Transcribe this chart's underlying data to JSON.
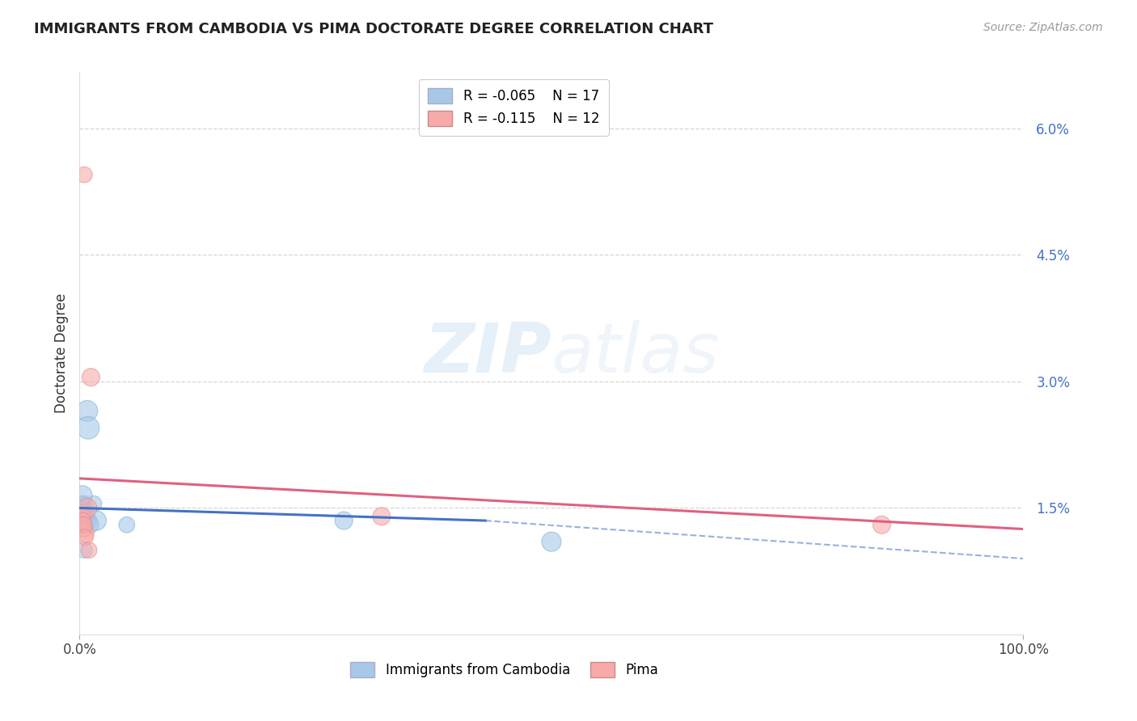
{
  "title": "IMMIGRANTS FROM CAMBODIA VS PIMA DOCTORATE DEGREE CORRELATION CHART",
  "source": "Source: ZipAtlas.com",
  "ylabel": "Doctorate Degree",
  "xlabel_legend1": "Immigrants from Cambodia",
  "xlabel_legend2": "Pima",
  "legend_blue_r": "R = -0.065",
  "legend_blue_n": "N = 17",
  "legend_pink_r": "R = -0.115",
  "legend_pink_n": "N = 12",
  "xmin": 0,
  "xmax": 100,
  "ymin": 0,
  "ymax": 6.667,
  "yticks": [
    1.5,
    3.0,
    4.5,
    6.0
  ],
  "ytick_labels": [
    "1.5%",
    "3.0%",
    "4.5%",
    "6.0%"
  ],
  "xticks": [
    0,
    100
  ],
  "xtick_labels": [
    "0.0%",
    "100.0%"
  ],
  "background_color": "#ffffff",
  "grid_color": "#cccccc",
  "blue_color": "#a8c8e8",
  "blue_edge_color": "#7aafd4",
  "pink_color": "#f8aaaa",
  "pink_edge_color": "#e88888",
  "blue_line_color": "#4472c4",
  "pink_line_color": "#e06080",
  "blue_scatter_x": [
    0.3,
    0.5,
    0.6,
    0.7,
    0.8,
    0.9,
    1.0,
    1.2,
    1.5,
    1.8,
    0.2,
    0.4,
    0.3,
    0.5,
    5.0,
    28.0,
    50.0
  ],
  "blue_scatter_y": [
    1.45,
    1.55,
    1.35,
    1.4,
    2.65,
    2.45,
    1.35,
    1.3,
    1.55,
    1.35,
    1.55,
    1.3,
    1.65,
    1.0,
    1.3,
    1.35,
    1.1
  ],
  "blue_scatter_size": [
    400,
    200,
    300,
    200,
    350,
    400,
    200,
    200,
    200,
    300,
    200,
    200,
    300,
    200,
    200,
    250,
    300
  ],
  "pink_scatter_x": [
    0.5,
    1.2,
    0.4,
    0.6,
    0.8,
    0.35,
    0.45,
    0.5,
    0.6,
    32.0,
    85.0,
    1.0
  ],
  "pink_scatter_y": [
    5.45,
    3.05,
    1.4,
    1.2,
    1.5,
    1.35,
    1.25,
    1.3,
    1.15,
    1.4,
    1.3,
    1.0
  ],
  "pink_scatter_size": [
    200,
    250,
    200,
    250,
    300,
    200,
    200,
    200,
    200,
    250,
    250,
    200
  ],
  "blue_trend_x0": 0,
  "blue_trend_x1": 43,
  "blue_trend_y0": 1.5,
  "blue_trend_y1": 1.35,
  "blue_dash_x0": 43,
  "blue_dash_x1": 100,
  "blue_dash_y0": 1.35,
  "blue_dash_y1": 0.9,
  "pink_trend_x0": 0,
  "pink_trend_x1": 100,
  "pink_trend_y0": 1.85,
  "pink_trend_y1": 1.25,
  "watermark_text": "ZIPatlas",
  "watermark_zip": "ZIP",
  "watermark_atlas": "atlas"
}
